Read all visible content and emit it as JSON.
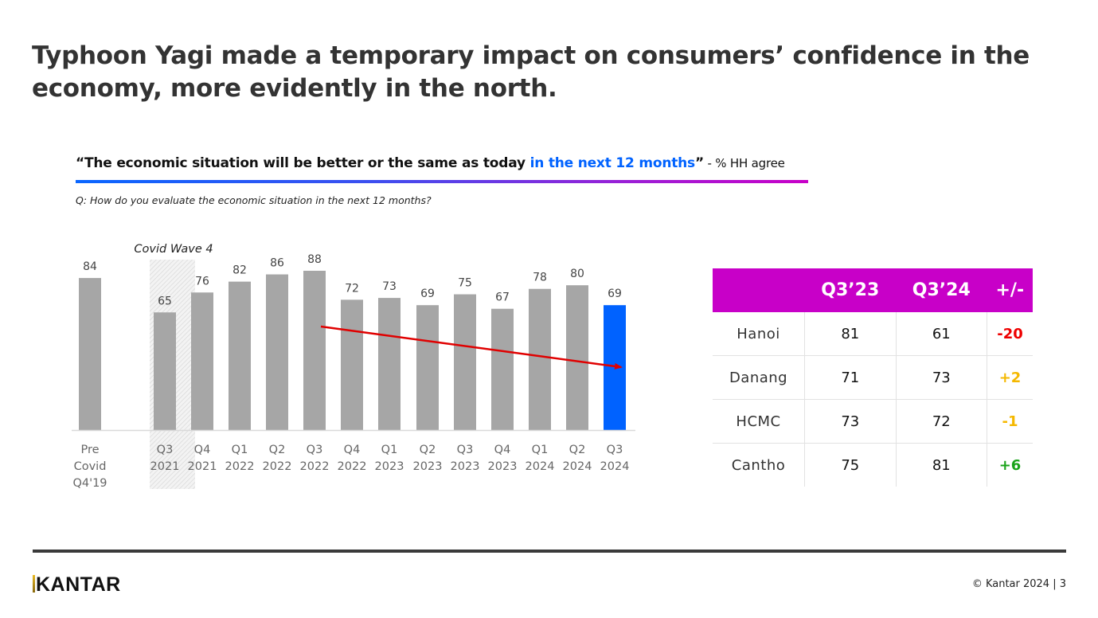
{
  "slide": {
    "title": "Typhoon Yagi made a temporary impact on consumers’ confidence in the economy, more evidently in the north.",
    "subtitle_main": "“The economic situation will be better or the same as today ",
    "subtitle_highlight": "in the next 12 months",
    "subtitle_close": "”",
    "subtitle_suffix": " - % HH agree",
    "question": "Q: How do you evaluate the economic situation in the next 12 months?",
    "colors": {
      "accent_blue": "#0062ff",
      "header_magenta": "#c800c8",
      "bar_gray": "#a6a6a6",
      "trend_red": "#e00000"
    }
  },
  "chart_data": {
    "type": "bar",
    "title": "“The economic situation will be better or the same as today in the next 12 months” - % HH agree",
    "xlabel": "",
    "ylabel": "% HH agree",
    "ylim": [
      0,
      100
    ],
    "grid": false,
    "categories": [
      [
        "Pre",
        "Covid",
        "Q4'19"
      ],
      [
        "Q3",
        "2021"
      ],
      [
        "Q4",
        "2021"
      ],
      [
        "Q1",
        "2022"
      ],
      [
        "Q2",
        "2022"
      ],
      [
        "Q3",
        "2022"
      ],
      [
        "Q4",
        "2022"
      ],
      [
        "Q1",
        "2023"
      ],
      [
        "Q2",
        "2023"
      ],
      [
        "Q3",
        "2023"
      ],
      [
        "Q4",
        "2023"
      ],
      [
        "Q1",
        "2024"
      ],
      [
        "Q2",
        "2024"
      ],
      [
        "Q3",
        "2024"
      ]
    ],
    "values": [
      84,
      65,
      76,
      82,
      86,
      88,
      72,
      73,
      69,
      75,
      67,
      78,
      80,
      69
    ],
    "highlight_index": 13,
    "annotations": [
      {
        "type": "shaded-region",
        "label": "Covid Wave 4",
        "category_index": 1
      },
      {
        "type": "trend-arrow",
        "from_category_index": 5,
        "to_category_index": 13,
        "direction": "down"
      }
    ]
  },
  "table": {
    "headers": [
      "",
      "Q3’23",
      "Q3’24",
      "+/-"
    ],
    "rows": [
      {
        "city": "Hanoi",
        "q3_23": "81",
        "q3_24": "61",
        "delta": "-20",
        "delta_color": "#ee0000"
      },
      {
        "city": "Danang",
        "q3_23": "71",
        "q3_24": "73",
        "delta": "+2",
        "delta_color": "#f5b800"
      },
      {
        "city": "HCMC",
        "q3_23": "73",
        "q3_24": "72",
        "delta": "-1",
        "delta_color": "#f5b800"
      },
      {
        "city": "Cantho",
        "q3_23": "75",
        "q3_24": "81",
        "delta": "+6",
        "delta_color": "#1aa31a"
      }
    ]
  },
  "footer": {
    "logo": "KANTAR",
    "copyright": "© Kantar 2024 | 3"
  }
}
